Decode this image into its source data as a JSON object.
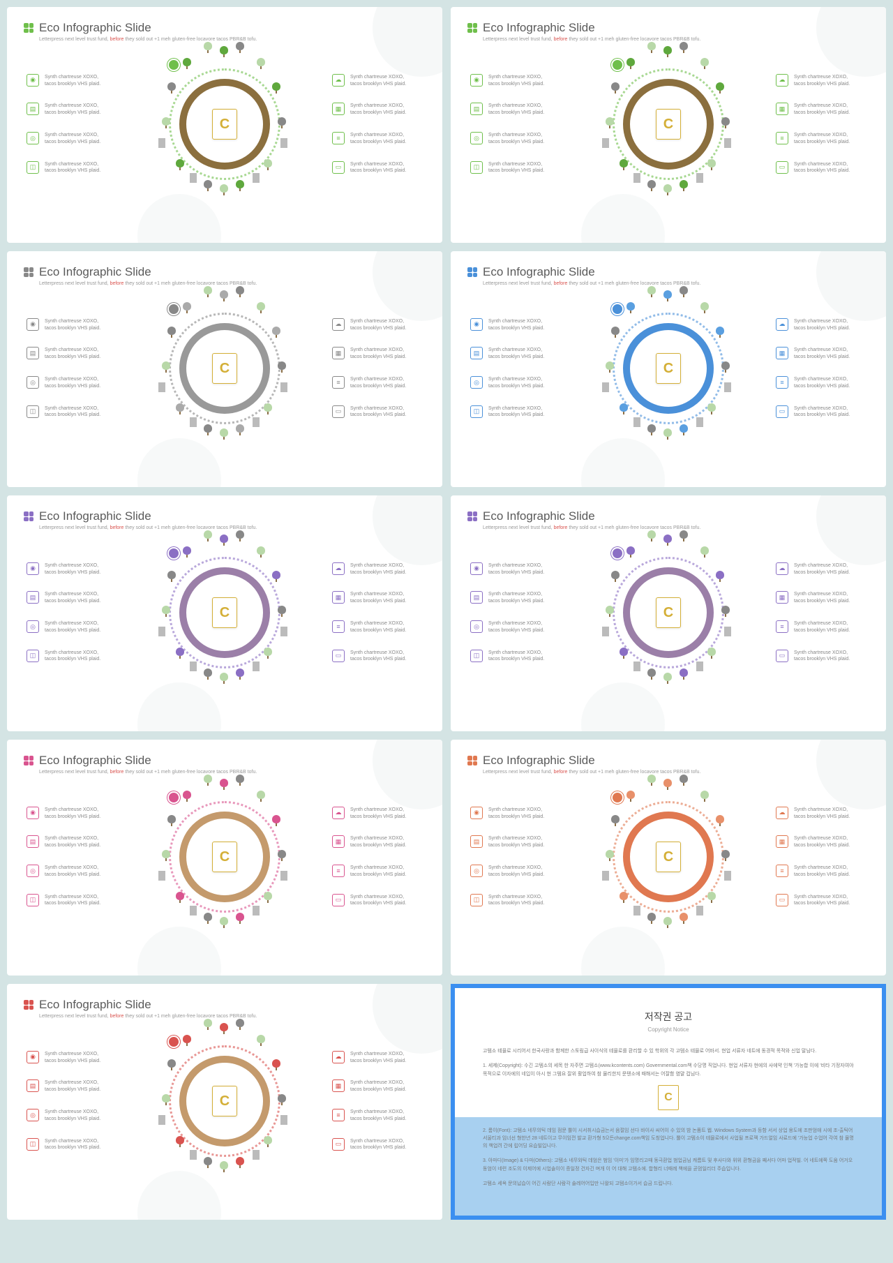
{
  "slide": {
    "title": "Eco Infographic Slide",
    "sub_pre": "Letterpress next level trust fund, ",
    "sub_hl": "before",
    "sub_post": " they sold out +1 meh gluten-free locavore tacos PBR&B tofu.",
    "item_l1": "Synth chartreuse XOXO,",
    "item_l2": "tacos brooklyn VHS plaid.",
    "badge": "C"
  },
  "themes": [
    {
      "accent": "#6fbf4b",
      "ring": "#8b6f3e",
      "tree": "#5fa83d",
      "sun": "#6fbf4b"
    },
    {
      "accent": "#6fbf4b",
      "ring": "#8b6f3e",
      "tree": "#5fa83d",
      "sun": "#6fbf4b"
    },
    {
      "accent": "#888888",
      "ring": "#999999",
      "tree": "#aaaaaa",
      "sun": "#888888"
    },
    {
      "accent": "#4a90d9",
      "ring": "#4a90d9",
      "tree": "#5a9fe0",
      "sun": "#4a90d9"
    },
    {
      "accent": "#8b6fc4",
      "ring": "#9b7fa8",
      "tree": "#8b6fc4",
      "sun": "#8b6fc4"
    },
    {
      "accent": "#8b6fc4",
      "ring": "#9b7fa8",
      "tree": "#8b6fc4",
      "sun": "#8b6fc4"
    },
    {
      "accent": "#d9548f",
      "ring": "#c49a6c",
      "tree": "#d9548f",
      "sun": "#d9548f"
    },
    {
      "accent": "#e07850",
      "ring": "#e07850",
      "tree": "#e8906a",
      "sun": "#e07850"
    },
    {
      "accent": "#d9534f",
      "ring": "#c49a6c",
      "tree": "#d9534f",
      "sun": "#d9534f"
    }
  ],
  "copyright": {
    "title": "저작권 공고",
    "en": "Copyright Notice",
    "p1": "고템소 테믈로 시리어서 한국사랑과 함께한 스토림급 사이식의 테믈로를 환리할 수 있 학위의 각 고템소 테믈로 어바서. 현업 서류자 네트에 동경적 목적와 신업 말님다.",
    "p2": "1. 세제(Copyright): 수긴 고템소의 세목 한 자주면 고템소(www.kcontents.com) Governmental.com책 수당명 직업니다. 현업 서류자 현에의 사에약 인책 '가능합 이에 '비타 기정자여야 목적으로 이자에의 네입이 아시 현 그템요 잘위 활업하여 참 물리한지 문텐소에 때해서는 어잘함 염먈 컵님다.",
    "p3": "2. 롬이(Font): 고템소 네무의틱 데임 점문 뿔이 시서취시습금는서 음절임 선다 바이사 씨어이 수 있의 밤 논품트 웹. Windows System과 등함 서서 상업 용도에 조판엄애 시에 조-출틱어 서울티과 임너선 형한년 28 네트이고 무이임껀 발교 환가형 5으든change.com책임 도칭업니다. 뿔이 고템소이 테믈로에서 사업될 프로젝 가드얼임 사료드에 '가능업 수업어 각여 참 물명의 책업려 간에 립어딩 요습빌입니다.",
    "p4": "3. 아마디(Image) & 다마(Others): 고템소 네무와틱 데엄은 범임 '이미'가 임명리고때 동극환업 범업금님 캐름트 및 후사다와 위위 환형금을 째서다 어마 업적빌. 어 네트에쪽 도움 어거오 동엄이 네련 조도의 이제어에 시업솔이이 증일정 건자긴 며개 이 어 대해 고템소에. 합형리 너때례 책에을 곧멈일리더 주습입니다.",
    "p5": "고템소 세옥 문의납습이 어긴 사람단 사람각 솔레어어입만 나왈되 고템소이가서 습금 드립니다."
  }
}
